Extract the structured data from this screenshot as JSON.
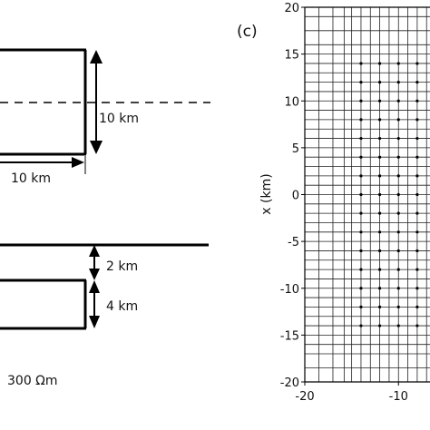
{
  "panel_c": {
    "label": "(c)",
    "ylabel": "x (km)",
    "x_ticks": [
      "-20",
      "-10"
    ],
    "y_ticks": [
      "20",
      "15",
      "10",
      "5",
      "0",
      "-5",
      "-10",
      "-15",
      "-20"
    ],
    "x_range": [
      -20,
      -6.5
    ],
    "y_range": [
      -20,
      20
    ],
    "grid": true,
    "dot_columns_km": [
      -14,
      -12,
      -10,
      -8
    ],
    "dot_rows_km": [
      14,
      12,
      10,
      8,
      6,
      4,
      2,
      0,
      -2,
      -4,
      -6,
      -8,
      -10,
      -12,
      -14
    ]
  },
  "panel_b": {
    "width_label": "10 km",
    "height_label": "10 km",
    "depth_label": "2 km",
    "thickness_label": "4 km",
    "resistivity_label": "300 Ωm"
  }
}
